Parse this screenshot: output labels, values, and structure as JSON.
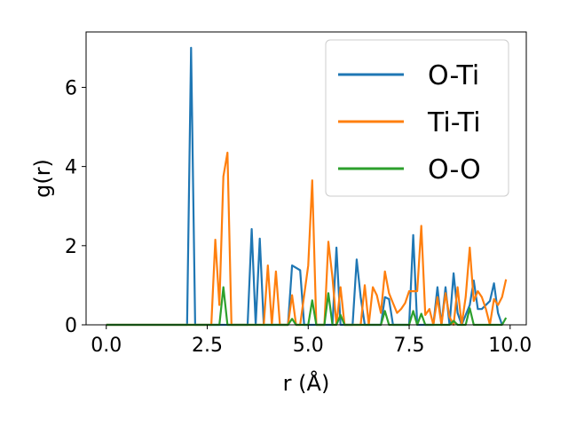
{
  "chart_data": {
    "type": "line",
    "xlabel": "r (Å)",
    "ylabel": "g(r)",
    "xlim": [
      -0.5,
      10.4
    ],
    "ylim": [
      0,
      7.4
    ],
    "xticks": [
      0.0,
      2.5,
      5.0,
      7.5,
      10.0
    ],
    "xtick_labels": [
      "0.0",
      "2.5",
      "5.0",
      "7.5",
      "10.0"
    ],
    "yticks": [
      0,
      2,
      4,
      6
    ],
    "ytick_labels": [
      "0",
      "2",
      "4",
      "6"
    ],
    "legend_position": "top-right",
    "grid": false,
    "series": [
      {
        "name": "O-Ti",
        "color": "#1f77b4",
        "x": [
          0.0,
          1.9,
          2.0,
          2.1,
          2.2,
          2.3,
          3.5,
          3.6,
          3.7,
          3.8,
          3.9,
          4.5,
          4.6,
          4.8,
          4.9,
          5.5,
          5.6,
          5.7,
          5.8,
          6.1,
          6.2,
          6.3,
          6.4,
          6.8,
          6.9,
          7.0,
          7.1,
          7.5,
          7.6,
          7.7,
          8.1,
          8.2,
          8.3,
          8.4,
          8.5,
          8.6,
          8.7,
          8.8,
          9.0,
          9.1,
          9.2,
          9.3,
          9.5,
          9.6,
          9.7,
          9.8
        ],
        "y": [
          0.0,
          0.0,
          0.0,
          7.0,
          0.0,
          0.0,
          0.0,
          2.42,
          0.0,
          2.18,
          0.0,
          0.0,
          1.5,
          1.38,
          0.0,
          0.0,
          0.0,
          1.95,
          0.0,
          0.0,
          1.65,
          0.7,
          0.0,
          0.0,
          0.7,
          0.65,
          0.0,
          0.0,
          2.27,
          0.0,
          0.0,
          0.95,
          0.0,
          0.95,
          0.0,
          1.3,
          0.3,
          0.0,
          0.5,
          1.12,
          0.4,
          0.4,
          0.6,
          1.05,
          0.3,
          0.0
        ]
      },
      {
        "name": "Ti-Ti",
        "color": "#ff7f0e",
        "x": [
          0.0,
          2.5,
          2.6,
          2.7,
          2.8,
          2.9,
          3.0,
          3.1,
          3.9,
          4.0,
          4.1,
          4.2,
          4.3,
          4.4,
          4.5,
          4.6,
          4.7,
          4.8,
          5.0,
          5.1,
          5.2,
          5.4,
          5.5,
          5.6,
          5.7,
          5.8,
          5.9,
          6.3,
          6.4,
          6.5,
          6.6,
          6.7,
          6.8,
          6.9,
          7.0,
          7.1,
          7.2,
          7.3,
          7.4,
          7.5,
          7.6,
          7.7,
          7.8,
          7.9,
          8.0,
          8.1,
          8.2,
          8.3,
          8.4,
          8.5,
          8.6,
          8.7,
          8.8,
          8.9,
          9.0,
          9.1,
          9.2,
          9.3,
          9.4,
          9.5,
          9.6,
          9.7,
          9.8,
          9.9
        ],
        "y": [
          0.0,
          0.0,
          0.0,
          2.15,
          0.5,
          3.75,
          4.35,
          0.0,
          0.0,
          1.5,
          0.0,
          1.35,
          0.0,
          0.0,
          0.0,
          0.75,
          0.0,
          0.0,
          1.5,
          3.65,
          0.0,
          0.0,
          2.1,
          1.2,
          0.0,
          0.95,
          0.0,
          0.0,
          1.0,
          0.0,
          0.95,
          0.75,
          0.3,
          1.35,
          0.8,
          0.55,
          0.3,
          0.4,
          0.55,
          0.85,
          0.85,
          0.85,
          2.5,
          0.25,
          0.4,
          0.0,
          0.7,
          0.0,
          0.8,
          0.2,
          0.0,
          0.95,
          0.0,
          0.7,
          1.95,
          0.6,
          0.85,
          0.7,
          0.4,
          0.0,
          0.65,
          0.5,
          0.7,
          1.15
        ]
      },
      {
        "name": "O-O",
        "color": "#2ca02c",
        "x": [
          0.0,
          2.7,
          2.8,
          2.9,
          3.0,
          3.1,
          4.5,
          4.6,
          4.7,
          4.8,
          5.0,
          5.1,
          5.2,
          5.4,
          5.5,
          5.6,
          5.7,
          5.8,
          5.9,
          6.8,
          6.9,
          7.0,
          7.4,
          7.5,
          7.6,
          7.7,
          7.8,
          7.9,
          8.5,
          8.6,
          8.7,
          8.8,
          8.9,
          9.0,
          9.1,
          9.2,
          9.7,
          9.8,
          9.9
        ],
        "y": [
          0.0,
          0.0,
          0.0,
          0.95,
          0.0,
          0.0,
          0.0,
          0.15,
          0.0,
          0.0,
          0.0,
          0.62,
          0.0,
          0.0,
          0.8,
          0.0,
          0.0,
          0.25,
          0.0,
          0.0,
          0.35,
          0.0,
          0.0,
          0.0,
          0.35,
          0.0,
          0.28,
          0.0,
          0.0,
          0.1,
          0.0,
          0.0,
          0.0,
          0.42,
          0.0,
          0.0,
          0.0,
          0.0,
          0.18
        ]
      }
    ]
  }
}
